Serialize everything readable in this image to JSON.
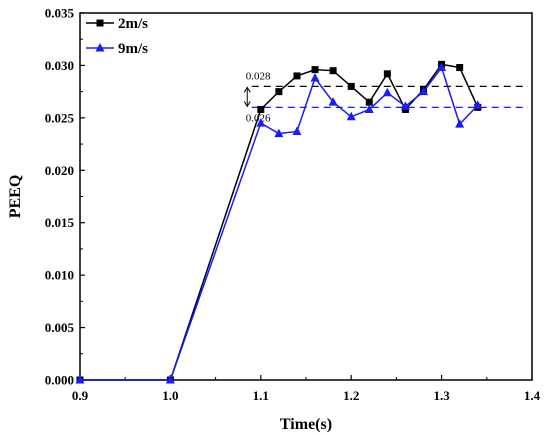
{
  "chart_data": {
    "type": "line",
    "xlabel": "Time(s)",
    "ylabel": "PEEQ",
    "xlim": [
      0.9,
      1.4
    ],
    "ylim": [
      0.0,
      0.035
    ],
    "x_ticks": [
      "0.9",
      "1.0",
      "1.1",
      "1.2",
      "1.3",
      "1.4"
    ],
    "y_ticks": [
      "0.000",
      "0.005",
      "0.010",
      "0.015",
      "0.020",
      "0.025",
      "0.030",
      "0.035"
    ],
    "legend_position": "top-left",
    "series": [
      {
        "name": "2m/s",
        "color": "#000000",
        "marker": "square",
        "x": [
          0.9,
          1.0,
          1.1,
          1.12,
          1.14,
          1.16,
          1.18,
          1.2,
          1.22,
          1.24,
          1.26,
          1.28,
          1.3,
          1.32,
          1.34
        ],
        "y": [
          0.0,
          0.0,
          0.0258,
          0.0275,
          0.029,
          0.0296,
          0.0295,
          0.028,
          0.0265,
          0.0292,
          0.0258,
          0.0277,
          0.0301,
          0.0298,
          0.026
        ]
      },
      {
        "name": "9m/s",
        "color": "#1a1aff",
        "marker": "triangle",
        "x": [
          0.9,
          1.0,
          1.1,
          1.12,
          1.14,
          1.16,
          1.18,
          1.2,
          1.22,
          1.24,
          1.26,
          1.28,
          1.3,
          1.32,
          1.34
        ],
        "y": [
          0.0,
          0.0,
          0.0245,
          0.0235,
          0.0237,
          0.0288,
          0.0265,
          0.0251,
          0.0258,
          0.0274,
          0.0261,
          0.0275,
          0.0298,
          0.0244,
          0.0262
        ]
      }
    ],
    "reference_lines": [
      {
        "y": 0.028,
        "color": "#000000",
        "style": "dashed",
        "label": "0.028"
      },
      {
        "y": 0.026,
        "color": "#1a1aff",
        "style": "dashed",
        "label": "0.026"
      }
    ]
  }
}
